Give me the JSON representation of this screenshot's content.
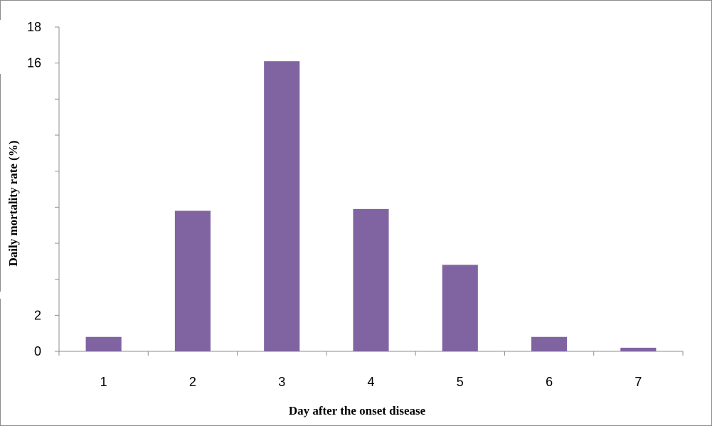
{
  "chart_data": {
    "type": "bar",
    "title": "",
    "xlabel": "Day after the onset disease",
    "ylabel": "Daily mortality rate (%)",
    "categories": [
      "1",
      "2",
      "3",
      "4",
      "5",
      "6",
      "7"
    ],
    "values": [
      0.8,
      7.8,
      16.1,
      7.9,
      4.8,
      0.8,
      0.2
    ],
    "ylim": [
      0,
      18
    ],
    "y_ticks_labeled": [
      "0",
      "2",
      "16",
      "18"
    ],
    "y_ticks_all": [
      0,
      2,
      4,
      6,
      8,
      10,
      12,
      14,
      16,
      18
    ],
    "grid": false,
    "legend": "none",
    "bar_color": "#8064A2"
  }
}
